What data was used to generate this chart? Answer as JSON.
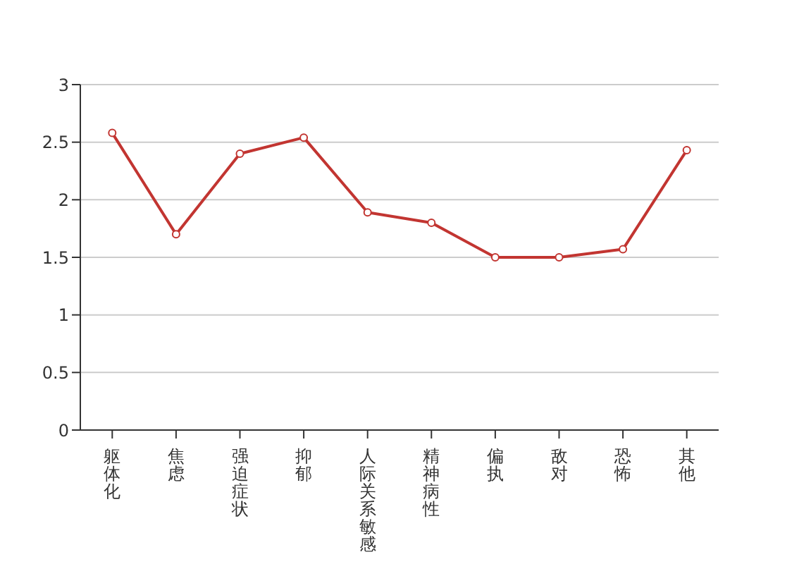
{
  "chart_data": {
    "type": "line",
    "categories": [
      "躯体化",
      "焦虑",
      "强迫症状",
      "抑郁",
      "人际关系敏感",
      "精神病性",
      "偏执",
      "敌对",
      "恐怖",
      "其他"
    ],
    "series": [
      {
        "color": "#c23531",
        "values": [
          2.58,
          1.7,
          2.4,
          2.54,
          1.89,
          1.8,
          1.5,
          1.5,
          1.57,
          2.43
        ]
      }
    ],
    "ylim": [
      0,
      3
    ],
    "yticks": [
      0,
      0.5,
      1,
      1.5,
      2,
      2.5,
      3
    ],
    "grid": "y",
    "marker": "circle",
    "line_style": "solid"
  }
}
